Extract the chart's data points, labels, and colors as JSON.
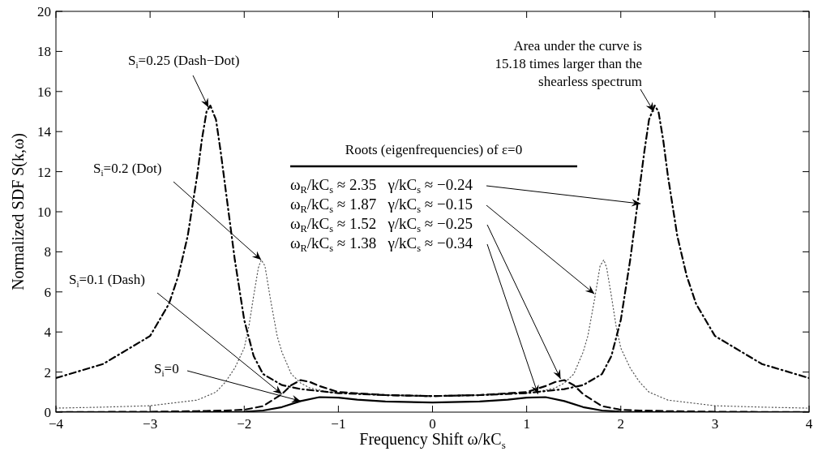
{
  "chart_data": {
    "type": "line",
    "xlabel": "Frequency Shift ω/kC$_{s}$",
    "ylabel": "Normalized SDF S(k,ω)",
    "xlim": [
      -4,
      4
    ],
    "ylim": [
      0,
      20
    ],
    "xticks": [
      -4,
      -3,
      -2,
      -1,
      0,
      1,
      2,
      3,
      4
    ],
    "yticks": [
      0,
      2,
      4,
      6,
      8,
      10,
      12,
      14,
      16,
      18,
      20
    ],
    "grid": false,
    "series": [
      {
        "color": "#000000",
        "line_style": "solid",
        "x": [
          -4,
          -3,
          -2.5,
          -2.2,
          -2,
          -1.8,
          -1.6,
          -1.4,
          -1.2,
          -1,
          -0.8,
          -0.5,
          0,
          0.5,
          0.8,
          1,
          1.2,
          1.4,
          1.6,
          1.8,
          2,
          2.2,
          2.5,
          3,
          4
        ],
        "values": [
          0,
          0,
          0,
          0.01,
          0.02,
          0.08,
          0.25,
          0.55,
          0.75,
          0.72,
          0.62,
          0.53,
          0.48,
          0.53,
          0.62,
          0.72,
          0.75,
          0.55,
          0.25,
          0.08,
          0.02,
          0.01,
          0,
          0,
          0
        ]
      },
      {
        "color": "#000000",
        "line_style": "dashed",
        "x": [
          -4,
          -3,
          -2.5,
          -2.2,
          -2,
          -1.8,
          -1.6,
          -1.5,
          -1.4,
          -1.3,
          -1.2,
          -1,
          -0.5,
          0,
          0.5,
          1,
          1.2,
          1.3,
          1.4,
          1.5,
          1.6,
          1.8,
          2,
          2.2,
          2.5,
          3,
          4
        ],
        "values": [
          0,
          0.02,
          0.05,
          0.08,
          0.12,
          0.3,
          0.9,
          1.35,
          1.6,
          1.5,
          1.3,
          1.0,
          0.85,
          0.8,
          0.85,
          1.0,
          1.3,
          1.5,
          1.6,
          1.35,
          0.9,
          0.3,
          0.12,
          0.08,
          0.05,
          0.02,
          0
        ]
      },
      {
        "color": "#555555",
        "line_style": "dotted",
        "x": [
          -4,
          -3.5,
          -3,
          -2.5,
          -2.3,
          -2.2,
          -2.1,
          -2,
          -1.95,
          -1.9,
          -1.85,
          -1.82,
          -1.78,
          -1.72,
          -1.65,
          -1.6,
          -1.5,
          -1.4,
          -1.3,
          -1.1,
          -1,
          -0.5,
          0,
          0.5,
          1,
          1.1,
          1.3,
          1.4,
          1.5,
          1.6,
          1.65,
          1.72,
          1.78,
          1.82,
          1.85,
          1.9,
          1.95,
          2,
          2.1,
          2.2,
          2.3,
          2.5,
          3,
          3.5,
          4
        ],
        "values": [
          0.2,
          0.25,
          0.32,
          0.6,
          1.0,
          1.5,
          2.2,
          3.2,
          4.3,
          5.8,
          7.2,
          7.6,
          7.3,
          5.6,
          3.8,
          3.0,
          1.9,
          1.45,
          1.2,
          1.0,
          0.95,
          0.85,
          0.8,
          0.85,
          0.95,
          1.0,
          1.2,
          1.45,
          1.9,
          3.0,
          3.8,
          5.6,
          7.3,
          7.6,
          7.2,
          5.8,
          4.3,
          3.2,
          2.2,
          1.5,
          1.0,
          0.6,
          0.32,
          0.25,
          0.2
        ]
      },
      {
        "color": "#000000",
        "line_style": "dashdot",
        "x": [
          -4,
          -3.5,
          -3,
          -2.8,
          -2.7,
          -2.6,
          -2.5,
          -2.45,
          -2.4,
          -2.36,
          -2.3,
          -2.25,
          -2.2,
          -2.1,
          -2,
          -1.9,
          -1.8,
          -1.6,
          -1.4,
          -1,
          -0.5,
          0,
          0.5,
          1,
          1.4,
          1.6,
          1.8,
          1.9,
          2,
          2.1,
          2.2,
          2.25,
          2.3,
          2.36,
          2.4,
          2.45,
          2.5,
          2.6,
          2.7,
          2.8,
          3,
          3.5,
          4
        ],
        "values": [
          1.7,
          2.4,
          3.8,
          5.4,
          6.8,
          8.8,
          11.8,
          13.6,
          15.0,
          15.3,
          14.6,
          13.0,
          11.2,
          7.6,
          4.6,
          2.8,
          1.9,
          1.35,
          1.15,
          0.95,
          0.85,
          0.8,
          0.85,
          0.95,
          1.15,
          1.35,
          1.9,
          2.8,
          4.6,
          7.6,
          11.2,
          13.0,
          14.6,
          15.3,
          15.0,
          13.6,
          11.8,
          8.8,
          6.8,
          5.4,
          3.8,
          2.4,
          1.7
        ]
      }
    ],
    "annotations": [
      {
        "text": "S$_{i}$=0.25 (Dash−Dot)",
        "x": -2.38,
        "y": 15.2
      },
      {
        "text": "S$_{i}$=0.2 (Dot)",
        "x": -1.82,
        "y": 7.6
      },
      {
        "text": "S$_{i}$=0.1 (Dash)",
        "x": -1.6,
        "y": 0.9
      },
      {
        "text": "S$_{i}$=0",
        "x": -1.4,
        "y": 0.55
      },
      {
        "text": "Area under the curve is\n15.18 times larger than the\nshearless spectrum",
        "x": 2.35,
        "y": 15.0
      },
      "Roots (eigenfrequencies) of ε=0",
      {
        "text": "ω$_{R}$/kC$_{s}$ ≈ 2.35   γ/kC$_{s}$ ≈ −0.24",
        "x": 2.21,
        "y": 10.4
      },
      {
        "text": "ω$_{R}$/kC$_{s}$ ≈ 1.87   γ/kC$_{s}$ ≈ −0.15",
        "x": 1.72,
        "y": 5.9
      },
      {
        "text": "ω$_{R}$/kC$_{s}$ ≈ 1.52   γ/kC$_{s}$ ≈ −0.25",
        "x": 1.36,
        "y": 1.66
      },
      {
        "text": "ω$_{R}$/kC$_{s}$ ≈ 1.38   γ/kC$_{s}$ ≈ −0.34",
        "x": 1.12,
        "y": 0.9
      }
    ]
  }
}
